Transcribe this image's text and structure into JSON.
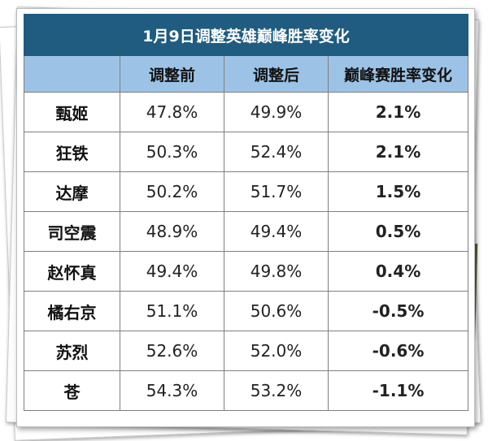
{
  "table": {
    "title": "1月9日调整英雄巅峰胜率变化",
    "headers": [
      "",
      "调整前",
      "调整后",
      "巅峰赛胜率变化"
    ],
    "rows": [
      {
        "hero": "甄姬",
        "before": "47.8%",
        "after": "49.9%",
        "change": "2.1%",
        "trend": "up"
      },
      {
        "hero": "狂铁",
        "before": "50.3%",
        "after": "52.4%",
        "change": "2.1%",
        "trend": "up"
      },
      {
        "hero": "达摩",
        "before": "50.2%",
        "after": "51.7%",
        "change": "1.5%",
        "trend": "up"
      },
      {
        "hero": "司空震",
        "before": "48.9%",
        "after": "49.4%",
        "change": "0.5%",
        "trend": "up"
      },
      {
        "hero": "赵怀真",
        "before": "49.4%",
        "after": "49.8%",
        "change": "0.4%",
        "trend": "up"
      },
      {
        "hero": "橘右京",
        "before": "51.1%",
        "after": "50.6%",
        "change": "-0.5%",
        "trend": "down"
      },
      {
        "hero": "苏烈",
        "before": "52.6%",
        "after": "52.0%",
        "change": "-0.6%",
        "trend": "down"
      },
      {
        "hero": "苍",
        "before": "54.3%",
        "after": "53.2%",
        "change": "-1.1%",
        "trend": "down"
      }
    ]
  },
  "colors": {
    "title_bg": "#1f5c80",
    "header_bg": "#9cc3e6",
    "positive": "#c00000",
    "negative": "#2e9a4e"
  }
}
